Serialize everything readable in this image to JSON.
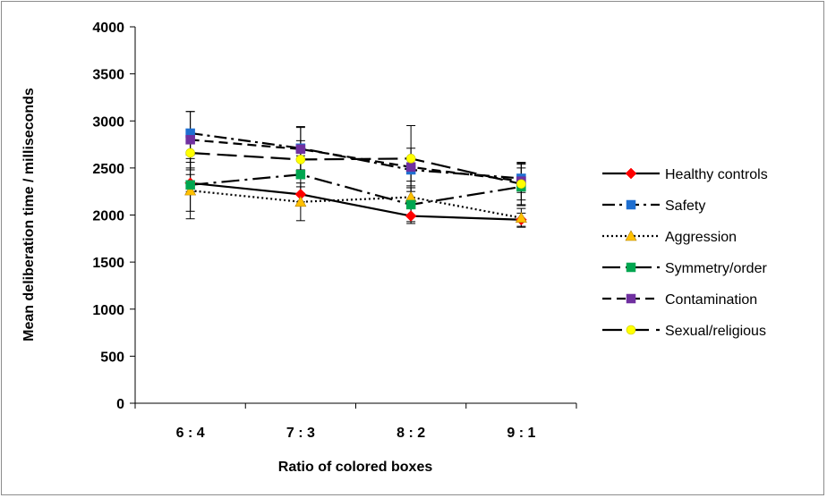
{
  "chart_data": {
    "type": "line",
    "title": "",
    "xlabel": "Ratio of colored boxes",
    "ylabel": "Mean deliberation time / milliseconds",
    "categories": [
      "6 : 4",
      "7 : 3",
      "8 : 2",
      "9 : 1"
    ],
    "ylim": [
      0,
      4000
    ],
    "yticks": [
      0,
      500,
      1000,
      1500,
      2000,
      2500,
      3000,
      3500,
      4000
    ],
    "grid": false,
    "legend_position": "right",
    "series": [
      {
        "name": "Healthy controls",
        "values": [
          2340,
          2220,
          1990,
          1950
        ],
        "errors": [
          90,
          80,
          80,
          70
        ],
        "color": "#ff0000",
        "marker": "diamond",
        "dash": "solid"
      },
      {
        "name": "Safety",
        "values": [
          2870,
          2710,
          2480,
          2390
        ],
        "errors": [
          230,
          230,
          120,
          150
        ],
        "color": "#1f6fd0",
        "marker": "square",
        "dash": "dash-dot"
      },
      {
        "name": "Aggression",
        "values": [
          2260,
          2140,
          2190,
          1970
        ],
        "errors": [
          300,
          200,
          100,
          100
        ],
        "color": "#ffc000",
        "marker": "triangle",
        "dash": "dotted"
      },
      {
        "name": "Symmetry/order",
        "values": [
          2320,
          2430,
          2110,
          2300
        ],
        "errors": [
          280,
          200,
          180,
          200
        ],
        "color": "#00a650",
        "marker": "square",
        "dash": "long-dash-dot"
      },
      {
        "name": "Contamination",
        "values": [
          2800,
          2700,
          2510,
          2360
        ],
        "errors": [
          300,
          230,
          200,
          200
        ],
        "color": "#7030a0",
        "marker": "square",
        "dash": "dash"
      },
      {
        "name": "Sexual/religious",
        "values": [
          2660,
          2590,
          2600,
          2330
        ],
        "errors": [
          180,
          200,
          350,
          220
        ],
        "color": "#ffff00",
        "marker": "circle",
        "dash": "long-dash"
      }
    ]
  }
}
